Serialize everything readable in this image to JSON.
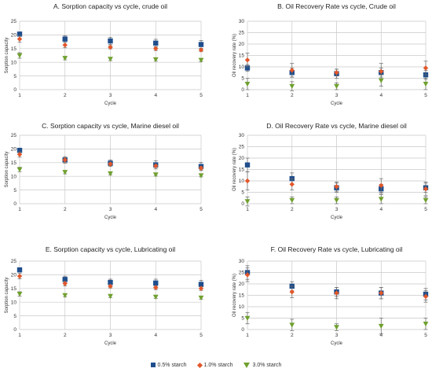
{
  "legend": [
    {
      "label": "0.5% starch",
      "color": "#1f4e8c",
      "marker": "square"
    },
    {
      "label": "1.0% starch",
      "color": "#e2572b",
      "marker": "diamond"
    },
    {
      "label": "3.0% starch",
      "color": "#6fa02e",
      "marker": "triangle-down"
    }
  ],
  "chart_data": [
    {
      "type": "scatter",
      "title": "A. Sorption capacity vs cycle, crude oil",
      "xlabel": "Cycle",
      "ylabel": "Sorption capacity",
      "x": [
        1,
        2,
        3,
        4,
        5
      ],
      "xlim": [
        1,
        5
      ],
      "ylim": [
        0,
        25
      ],
      "yticks": [
        0,
        5,
        10,
        15,
        20,
        25
      ],
      "grid": true,
      "series": [
        {
          "name": "0.5% starch",
          "values": [
            20.3,
            18.5,
            17.8,
            17.0,
            16.5
          ],
          "errors": [
            0.8,
            1.2,
            1.3,
            1.4,
            1.5
          ]
        },
        {
          "name": "1.0% starch",
          "values": [
            18.5,
            16.3,
            15.5,
            15.0,
            14.5
          ],
          "errors": [
            1.2,
            1.0,
            0.6,
            0.7,
            0.6
          ]
        },
        {
          "name": "3.0% starch",
          "values": [
            12.5,
            11.5,
            11.2,
            11.0,
            10.8
          ],
          "errors": [
            1.0,
            0.6,
            0.6,
            0.6,
            0.6
          ]
        }
      ]
    },
    {
      "type": "scatter",
      "title": "B. Oil Recovery Rate vs cycle, Crude oil",
      "xlabel": "Cycle",
      "ylabel": "Oil recovery rate (%)",
      "x": [
        1,
        2,
        3,
        4,
        5
      ],
      "xlim": [
        1,
        5
      ],
      "ylim": [
        0,
        30
      ],
      "yticks": [
        0,
        5,
        10,
        15,
        20,
        25,
        30
      ],
      "grid": true,
      "series": [
        {
          "name": "0.5% starch",
          "values": [
            9.5,
            7.5,
            7.0,
            7.5,
            6.5
          ],
          "errors": [
            1.5,
            2.0,
            2.0,
            2.0,
            2.0
          ]
        },
        {
          "name": "1.0% starch",
          "values": [
            13.0,
            8.5,
            7.5,
            8.0,
            9.5
          ],
          "errors": [
            3.0,
            3.0,
            1.5,
            3.5,
            3.0
          ]
        },
        {
          "name": "3.0% starch",
          "values": [
            2.5,
            1.5,
            1.5,
            4.0,
            2.5
          ],
          "errors": [
            2.5,
            2.0,
            1.5,
            2.5,
            2.5
          ]
        }
      ]
    },
    {
      "type": "scatter",
      "title": "C. Sorption capacity vs cycle, Marine diesel oil",
      "xlabel": "Cycle",
      "ylabel": "Sorption capacity",
      "x": [
        1,
        2,
        3,
        4,
        5
      ],
      "xlim": [
        1,
        5
      ],
      "ylim": [
        0,
        25
      ],
      "yticks": [
        0,
        5,
        10,
        15,
        20,
        25
      ],
      "grid": true,
      "series": [
        {
          "name": "0.5% starch",
          "values": [
            19.5,
            16.0,
            14.8,
            14.2,
            13.6
          ],
          "errors": [
            0.8,
            1.2,
            1.2,
            1.5,
            1.5
          ]
        },
        {
          "name": "1.0% starch",
          "values": [
            18.0,
            16.0,
            14.5,
            13.8,
            13.0
          ],
          "errors": [
            1.0,
            0.8,
            0.6,
            0.6,
            0.6
          ]
        },
        {
          "name": "3.0% starch",
          "values": [
            12.5,
            11.5,
            11.0,
            10.6,
            10.3
          ],
          "errors": [
            0.8,
            0.6,
            0.5,
            0.5,
            0.5
          ]
        }
      ]
    },
    {
      "type": "scatter",
      "title": "D. Oil Recovery Rate vs cycle, Marine diesel oil",
      "xlabel": "Cycle",
      "ylabel": "Oil recovery rate (%)",
      "x": [
        1,
        2,
        3,
        4,
        5
      ],
      "xlim": [
        1,
        5
      ],
      "ylim": [
        0,
        30
      ],
      "yticks": [
        0,
        5,
        10,
        15,
        20,
        25,
        30
      ],
      "grid": true,
      "series": [
        {
          "name": "0.5% starch",
          "values": [
            17.0,
            11.0,
            7.0,
            6.5,
            7.0
          ],
          "errors": [
            3.0,
            2.5,
            2.0,
            2.0,
            2.0
          ]
        },
        {
          "name": "1.0% starch",
          "values": [
            10.0,
            8.5,
            7.5,
            8.0,
            6.5
          ],
          "errors": [
            4.0,
            2.5,
            2.0,
            3.0,
            3.0
          ]
        },
        {
          "name": "3.0% starch",
          "values": [
            1.0,
            1.5,
            1.5,
            2.0,
            1.5
          ],
          "errors": [
            2.0,
            1.5,
            1.5,
            2.0,
            1.5
          ]
        }
      ]
    },
    {
      "type": "scatter",
      "title": "E. Sorption capacity vs cycle, Lubricating oil",
      "xlabel": "Cycle",
      "ylabel": "Sorption capacity",
      "x": [
        1,
        2,
        3,
        4,
        5
      ],
      "xlim": [
        1,
        5
      ],
      "ylim": [
        0,
        25
      ],
      "yticks": [
        0,
        5,
        10,
        15,
        20,
        25
      ],
      "grid": true,
      "series": [
        {
          "name": "0.5% starch",
          "values": [
            21.8,
            18.3,
            17.2,
            17.0,
            16.5
          ],
          "errors": [
            0.8,
            1.2,
            1.2,
            1.4,
            1.5
          ]
        },
        {
          "name": "1.0% starch",
          "values": [
            19.5,
            16.8,
            15.8,
            15.3,
            15.0
          ],
          "errors": [
            1.0,
            0.9,
            0.6,
            0.7,
            0.7
          ]
        },
        {
          "name": "3.0% starch",
          "values": [
            13.0,
            12.5,
            12.2,
            11.9,
            11.6
          ],
          "errors": [
            0.8,
            0.6,
            0.5,
            0.5,
            0.5
          ]
        }
      ]
    },
    {
      "type": "scatter",
      "title": "F. Oil Recovery Rate vs cycle, Lubricating oil",
      "xlabel": "Cycle",
      "ylabel": "Oil recovery rate (%)",
      "x": [
        1,
        2,
        3,
        4,
        5
      ],
      "xlim": [
        1,
        5
      ],
      "ylim": [
        0,
        30
      ],
      "yticks": [
        0,
        5,
        10,
        15,
        20,
        25,
        30
      ],
      "grid": true,
      "series": [
        {
          "name": "0.5% starch",
          "values": [
            25.0,
            19.0,
            16.5,
            16.0,
            15.5
          ],
          "errors": [
            3.0,
            2.0,
            2.0,
            2.5,
            2.5
          ]
        },
        {
          "name": "1.0% starch",
          "values": [
            24.0,
            16.5,
            16.0,
            16.0,
            14.5
          ],
          "errors": [
            3.0,
            2.5,
            2.5,
            2.5,
            2.5
          ]
        },
        {
          "name": "3.0% starch",
          "values": [
            5.0,
            2.0,
            1.0,
            1.5,
            2.5
          ],
          "errors": [
            2.5,
            2.5,
            1.5,
            3.5,
            2.5
          ]
        }
      ]
    }
  ]
}
